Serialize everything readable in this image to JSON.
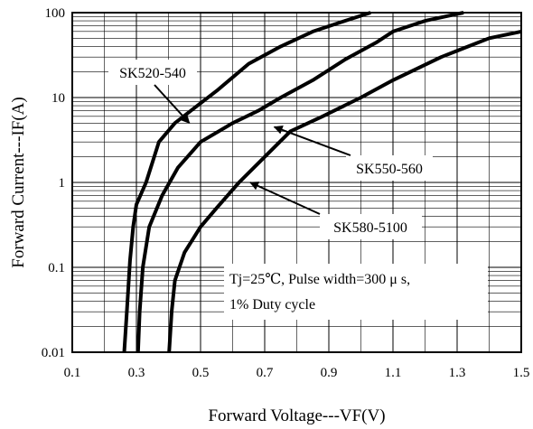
{
  "chart_data": {
    "type": "line",
    "xlabel": "Forward Voltage---VF(V)",
    "ylabel": "Forward Current---IF(A)",
    "xlim": [
      0.1,
      1.5
    ],
    "ylim": [
      0.01,
      100
    ],
    "y_scale": "log",
    "grid": true,
    "x_ticks": [
      0.1,
      0.3,
      0.5,
      0.7,
      0.9,
      1.1,
      1.3,
      1.5
    ],
    "x_tick_labels": [
      "0.1",
      "0.3",
      "0.5",
      "0.7",
      "0.9",
      "1.1",
      "1.3",
      "1.5"
    ],
    "y_ticks": [
      0.01,
      0.1,
      1,
      10,
      100
    ],
    "y_tick_labels": [
      "0.01",
      "0.1",
      "1",
      "10",
      "100"
    ],
    "annotation_lines": [
      "Tj=25℃, Pulse width=300 μ s,",
      "1% Duty cycle"
    ],
    "series": [
      {
        "name": "SK520-540",
        "x": [
          0.262,
          0.27,
          0.28,
          0.29,
          0.3,
          0.33,
          0.37,
          0.42,
          0.47,
          0.55,
          0.65,
          0.75,
          0.85,
          0.95,
          1.03
        ],
        "y": [
          0.01,
          0.03,
          0.12,
          0.3,
          0.55,
          1,
          3,
          5,
          7,
          12,
          25,
          40,
          60,
          80,
          100
        ]
      },
      {
        "name": "SK550-560",
        "x": [
          0.305,
          0.31,
          0.32,
          0.34,
          0.38,
          0.43,
          0.5,
          0.6,
          0.68,
          0.75,
          0.85,
          0.95,
          1.05,
          1.1,
          1.2,
          1.32
        ],
        "y": [
          0.01,
          0.03,
          0.1,
          0.3,
          0.7,
          1.5,
          3,
          5,
          7,
          10,
          16,
          28,
          45,
          60,
          80,
          100
        ]
      },
      {
        "name": "SK580-5100",
        "x": [
          0.402,
          0.41,
          0.42,
          0.45,
          0.5,
          0.55,
          0.62,
          0.7,
          0.78,
          0.88,
          1.0,
          1.1,
          1.25,
          1.4,
          1.5
        ],
        "y": [
          0.01,
          0.03,
          0.07,
          0.15,
          0.3,
          0.5,
          1,
          2,
          4,
          6,
          10,
          16,
          30,
          50,
          60
        ]
      }
    ],
    "series_labels": [
      {
        "text": "SK520-540",
        "arrow_to": [
          0.465,
          5
        ]
      },
      {
        "text": "SK550-560",
        "arrow_to": [
          0.73,
          4.5
        ]
      },
      {
        "text": "SK580-5100",
        "arrow_to": [
          0.655,
          1
        ]
      }
    ]
  }
}
